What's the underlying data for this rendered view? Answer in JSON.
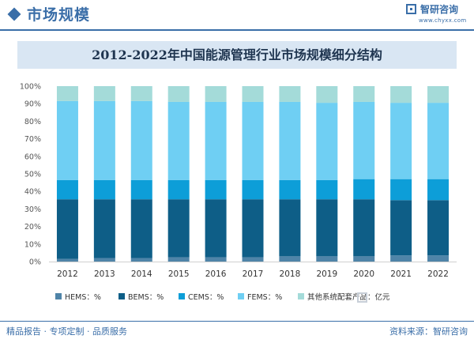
{
  "header": {
    "title": "市场规模",
    "brand_name": "智研咨询",
    "brand_url": "www.chyxx.com"
  },
  "footer": {
    "left": "精品报告 · 专项定制 · 品质服务",
    "right": "资料来源：智研咨询"
  },
  "colors": {
    "accent": "#3a6ea8",
    "title_band": "#d9e6f3",
    "HEMS": "#4f84a8",
    "BEMS": "#0e5e87",
    "CEMS": "#0d9ed8",
    "FEMS": "#6fcff3",
    "other": "#a4dbd9"
  },
  "chart_data": {
    "type": "bar",
    "stacked": true,
    "title": "2012-2022年中国能源管理行业市场规模细分结构",
    "categories": [
      "2012",
      "2013",
      "2014",
      "2015",
      "2016",
      "2017",
      "2018",
      "2019",
      "2020",
      "2021",
      "2022"
    ],
    "y_ticks": [
      "0%",
      "10%",
      "20%",
      "30%",
      "40%",
      "50%",
      "60%",
      "70%",
      "80%",
      "90%",
      "100%"
    ],
    "ylim": [
      0,
      100
    ],
    "grid": false,
    "legend_position": "bottom",
    "series": [
      {
        "name": "HEMS：%",
        "color_key": "HEMS",
        "values": [
          1.5,
          2,
          2,
          2.5,
          2.5,
          2.5,
          3,
          3,
          3,
          3.5,
          3.5
        ]
      },
      {
        "name": "BEMS：%",
        "color_key": "BEMS",
        "values": [
          34,
          33.5,
          33.5,
          33,
          33,
          33,
          32.5,
          32.5,
          32.5,
          31.5,
          31.5
        ]
      },
      {
        "name": "CEMS：%",
        "color_key": "CEMS",
        "values": [
          11,
          11,
          11,
          11,
          11,
          11,
          11,
          11,
          11.5,
          12,
          12
        ]
      },
      {
        "name": "FEMS：%",
        "color_key": "FEMS",
        "values": [
          45,
          45,
          45,
          44.5,
          44.5,
          44.5,
          44.5,
          44,
          44,
          43.5,
          43.5
        ]
      },
      {
        "name": "其他系统配套产品：亿元",
        "color_key": "other",
        "values": [
          8.5,
          8.5,
          8.5,
          9,
          9,
          9,
          9,
          9.5,
          9,
          9.5,
          9.5
        ]
      }
    ]
  }
}
